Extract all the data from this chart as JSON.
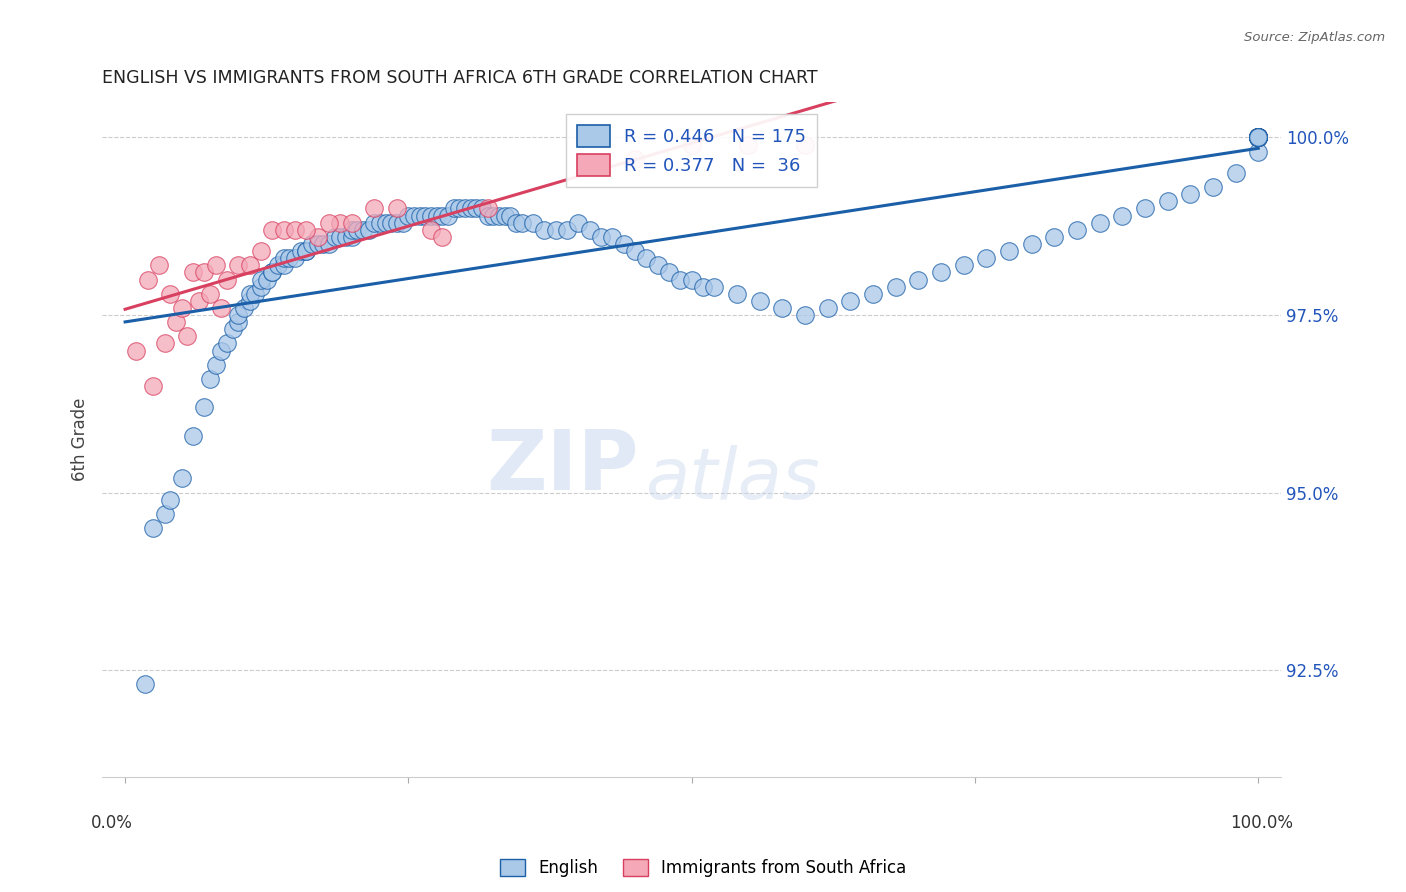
{
  "title": "ENGLISH VS IMMIGRANTS FROM SOUTH AFRICA 6TH GRADE CORRELATION CHART",
  "source": "Source: ZipAtlas.com",
  "ylabel": "6th Grade",
  "ytick_labels": [
    "92.5%",
    "95.0%",
    "97.5%",
    "100.0%"
  ],
  "ytick_values": [
    0.925,
    0.95,
    0.975,
    1.0
  ],
  "xlim": [
    -0.02,
    1.02
  ],
  "ylim": [
    0.91,
    1.005
  ],
  "legend_english": "English",
  "legend_immigrants": "Immigrants from South Africa",
  "R_english": 0.446,
  "N_english": 175,
  "R_immigrants": 0.377,
  "N_immigrants": 36,
  "english_color": "#aac8e8",
  "immigrants_color": "#f4a8b8",
  "english_line_color": "#1a5fa8",
  "immigrants_line_color": "#d84060",
  "watermark_zip": "ZIP",
  "watermark_atlas": "atlas",
  "english_x": [
    0.018,
    0.025,
    0.035,
    0.04,
    0.05,
    0.06,
    0.07,
    0.075,
    0.08,
    0.085,
    0.09,
    0.095,
    0.1,
    0.1,
    0.105,
    0.11,
    0.11,
    0.115,
    0.12,
    0.12,
    0.125,
    0.13,
    0.13,
    0.135,
    0.14,
    0.14,
    0.145,
    0.15,
    0.155,
    0.16,
    0.16,
    0.165,
    0.17,
    0.175,
    0.18,
    0.185,
    0.19,
    0.195,
    0.2,
    0.2,
    0.205,
    0.21,
    0.215,
    0.22,
    0.225,
    0.23,
    0.235,
    0.24,
    0.245,
    0.25,
    0.255,
    0.26,
    0.265,
    0.27,
    0.275,
    0.28,
    0.285,
    0.29,
    0.295,
    0.3,
    0.305,
    0.31,
    0.315,
    0.32,
    0.325,
    0.33,
    0.335,
    0.34,
    0.345,
    0.35,
    0.36,
    0.37,
    0.38,
    0.39,
    0.4,
    0.41,
    0.42,
    0.43,
    0.44,
    0.45,
    0.46,
    0.47,
    0.48,
    0.49,
    0.5,
    0.51,
    0.52,
    0.54,
    0.56,
    0.58,
    0.6,
    0.62,
    0.64,
    0.66,
    0.68,
    0.7,
    0.72,
    0.74,
    0.76,
    0.78,
    0.8,
    0.82,
    0.84,
    0.86,
    0.88,
    0.9,
    0.92,
    0.94,
    0.96,
    0.98,
    1.0,
    1.0,
    1.0,
    1.0,
    1.0,
    1.0,
    1.0,
    1.0,
    1.0,
    1.0,
    1.0,
    1.0,
    1.0,
    1.0,
    1.0,
    1.0,
    1.0,
    1.0,
    1.0,
    1.0,
    1.0,
    1.0,
    1.0,
    1.0,
    1.0,
    1.0,
    1.0,
    1.0,
    1.0,
    1.0,
    1.0,
    1.0,
    1.0,
    1.0,
    1.0,
    1.0,
    1.0,
    1.0,
    1.0,
    1.0,
    1.0,
    1.0,
    1.0,
    1.0,
    1.0,
    1.0,
    1.0,
    1.0,
    1.0,
    1.0,
    1.0,
    1.0,
    1.0,
    1.0,
    1.0,
    1.0
  ],
  "english_y": [
    0.923,
    0.945,
    0.947,
    0.949,
    0.952,
    0.958,
    0.962,
    0.966,
    0.968,
    0.97,
    0.971,
    0.973,
    0.974,
    0.975,
    0.976,
    0.977,
    0.978,
    0.978,
    0.979,
    0.98,
    0.98,
    0.981,
    0.981,
    0.982,
    0.982,
    0.983,
    0.983,
    0.983,
    0.984,
    0.984,
    0.984,
    0.985,
    0.985,
    0.985,
    0.985,
    0.986,
    0.986,
    0.986,
    0.986,
    0.987,
    0.987,
    0.987,
    0.987,
    0.988,
    0.988,
    0.988,
    0.988,
    0.988,
    0.988,
    0.989,
    0.989,
    0.989,
    0.989,
    0.989,
    0.989,
    0.989,
    0.989,
    0.99,
    0.99,
    0.99,
    0.99,
    0.99,
    0.99,
    0.989,
    0.989,
    0.989,
    0.989,
    0.989,
    0.988,
    0.988,
    0.988,
    0.987,
    0.987,
    0.987,
    0.988,
    0.987,
    0.986,
    0.986,
    0.985,
    0.984,
    0.983,
    0.982,
    0.981,
    0.98,
    0.98,
    0.979,
    0.979,
    0.978,
    0.977,
    0.976,
    0.975,
    0.976,
    0.977,
    0.978,
    0.979,
    0.98,
    0.981,
    0.982,
    0.983,
    0.984,
    0.985,
    0.986,
    0.987,
    0.988,
    0.989,
    0.99,
    0.991,
    0.992,
    0.993,
    0.995,
    0.998,
    1.0,
    1.0,
    1.0,
    1.0,
    1.0,
    1.0,
    1.0,
    1.0,
    1.0,
    1.0,
    1.0,
    1.0,
    1.0,
    1.0,
    1.0,
    1.0,
    1.0,
    1.0,
    1.0,
    1.0,
    1.0,
    1.0,
    1.0,
    1.0,
    1.0,
    1.0,
    1.0,
    1.0,
    1.0,
    1.0,
    1.0,
    1.0,
    1.0,
    1.0,
    1.0,
    1.0,
    1.0,
    1.0,
    1.0,
    1.0,
    1.0,
    1.0,
    1.0,
    1.0,
    1.0,
    1.0,
    1.0,
    1.0,
    1.0,
    1.0,
    1.0,
    1.0,
    1.0,
    1.0,
    1.0
  ],
  "immigrants_x": [
    0.01,
    0.02,
    0.025,
    0.03,
    0.035,
    0.04,
    0.045,
    0.05,
    0.055,
    0.06,
    0.065,
    0.07,
    0.075,
    0.08,
    0.085,
    0.09,
    0.1,
    0.11,
    0.12,
    0.13,
    0.14,
    0.15,
    0.17,
    0.19,
    0.22,
    0.27,
    0.45,
    0.5,
    0.55,
    0.6,
    0.16,
    0.18,
    0.2,
    0.24,
    0.28,
    0.32
  ],
  "immigrants_y": [
    0.97,
    0.98,
    0.965,
    0.982,
    0.971,
    0.978,
    0.974,
    0.976,
    0.972,
    0.981,
    0.977,
    0.981,
    0.978,
    0.982,
    0.976,
    0.98,
    0.982,
    0.982,
    0.984,
    0.987,
    0.987,
    0.987,
    0.986,
    0.988,
    0.99,
    0.987,
    0.997,
    0.999,
    0.999,
    0.999,
    0.987,
    0.988,
    0.988,
    0.99,
    0.986,
    0.99
  ]
}
